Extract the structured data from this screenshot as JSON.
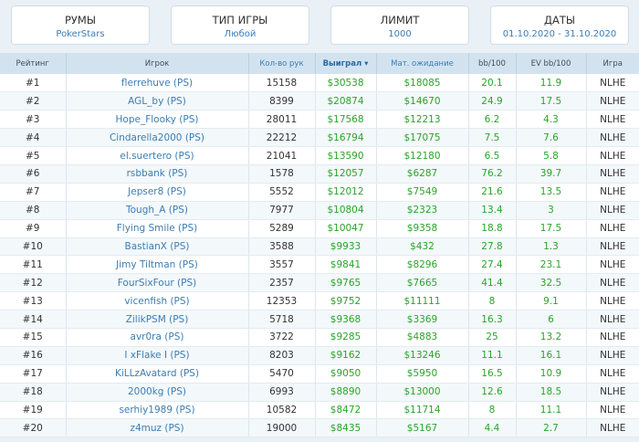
{
  "filters": [
    {
      "title": "РУМЫ",
      "value": "PokerStars"
    },
    {
      "title": "ТИП ИГРЫ",
      "value": "Любой"
    },
    {
      "title": "ЛИМИТ",
      "value": "1000"
    },
    {
      "title": "ДАТЫ",
      "value": "01.10.2020 - 31.10.2020"
    }
  ],
  "table": {
    "headers": {
      "rank": "Рейтинг",
      "player": "Игрок",
      "hands": "Кол-во рук",
      "won": "Выиграл",
      "sort_icon": "▾",
      "ev": "Мат. ожидание",
      "bb100": "bb/100",
      "ev_bb100": "EV bb/100",
      "game": "Игра"
    },
    "rows": [
      {
        "rank": "#1",
        "player": "flerrehuve (PS)",
        "hands": "15158",
        "won": "$30538",
        "ev": "$18085",
        "bb100": "20.1",
        "ev_bb100": "11.9",
        "game": "NLHE"
      },
      {
        "rank": "#2",
        "player": "AGL_by (PS)",
        "hands": "8399",
        "won": "$20874",
        "ev": "$14670",
        "bb100": "24.9",
        "ev_bb100": "17.5",
        "game": "NLHE"
      },
      {
        "rank": "#3",
        "player": "Hope_Flooky (PS)",
        "hands": "28011",
        "won": "$17568",
        "ev": "$12213",
        "bb100": "6.2",
        "ev_bb100": "4.3",
        "game": "NLHE"
      },
      {
        "rank": "#4",
        "player": "Cindarella2000 (PS)",
        "hands": "22212",
        "won": "$16794",
        "ev": "$17075",
        "bb100": "7.5",
        "ev_bb100": "7.6",
        "game": "NLHE"
      },
      {
        "rank": "#5",
        "player": "el.suertero (PS)",
        "hands": "21041",
        "won": "$13590",
        "ev": "$12180",
        "bb100": "6.5",
        "ev_bb100": "5.8",
        "game": "NLHE"
      },
      {
        "rank": "#6",
        "player": "rsbbank (PS)",
        "hands": "1578",
        "won": "$12057",
        "ev": "$6287",
        "bb100": "76.2",
        "ev_bb100": "39.7",
        "game": "NLHE"
      },
      {
        "rank": "#7",
        "player": "Jepser8 (PS)",
        "hands": "5552",
        "won": "$12012",
        "ev": "$7549",
        "bb100": "21.6",
        "ev_bb100": "13.5",
        "game": "NLHE"
      },
      {
        "rank": "#8",
        "player": "Tough_A (PS)",
        "hands": "7977",
        "won": "$10804",
        "ev": "$2323",
        "bb100": "13.4",
        "ev_bb100": "3",
        "game": "NLHE"
      },
      {
        "rank": "#9",
        "player": "Flying Smile (PS)",
        "hands": "5289",
        "won": "$10047",
        "ev": "$9358",
        "bb100": "18.8",
        "ev_bb100": "17.5",
        "game": "NLHE"
      },
      {
        "rank": "#10",
        "player": "BastianX (PS)",
        "hands": "3588",
        "won": "$9933",
        "ev": "$432",
        "bb100": "27.8",
        "ev_bb100": "1.3",
        "game": "NLHE"
      },
      {
        "rank": "#11",
        "player": "Jimy Tiltman (PS)",
        "hands": "3557",
        "won": "$9841",
        "ev": "$8296",
        "bb100": "27.4",
        "ev_bb100": "23.1",
        "game": "NLHE"
      },
      {
        "rank": "#12",
        "player": "FourSixFour (PS)",
        "hands": "2357",
        "won": "$9765",
        "ev": "$7665",
        "bb100": "41.4",
        "ev_bb100": "32.5",
        "game": "NLHE"
      },
      {
        "rank": "#13",
        "player": "vicenfish (PS)",
        "hands": "12353",
        "won": "$9752",
        "ev": "$11111",
        "bb100": "8",
        "ev_bb100": "9.1",
        "game": "NLHE"
      },
      {
        "rank": "#14",
        "player": "ZilikPSM (PS)",
        "hands": "5718",
        "won": "$9368",
        "ev": "$3369",
        "bb100": "16.3",
        "ev_bb100": "6",
        "game": "NLHE"
      },
      {
        "rank": "#15",
        "player": "avr0ra (PS)",
        "hands": "3722",
        "won": "$9285",
        "ev": "$4883",
        "bb100": "25",
        "ev_bb100": "13.2",
        "game": "NLHE"
      },
      {
        "rank": "#16",
        "player": "I xFlake I (PS)",
        "hands": "8203",
        "won": "$9162",
        "ev": "$13246",
        "bb100": "11.1",
        "ev_bb100": "16.1",
        "game": "NLHE"
      },
      {
        "rank": "#17",
        "player": "KiLLzAvatard (PS)",
        "hands": "5470",
        "won": "$9050",
        "ev": "$5950",
        "bb100": "16.5",
        "ev_bb100": "10.9",
        "game": "NLHE"
      },
      {
        "rank": "#18",
        "player": "2000kg (PS)",
        "hands": "6993",
        "won": "$8890",
        "ev": "$13000",
        "bb100": "12.6",
        "ev_bb100": "18.5",
        "game": "NLHE"
      },
      {
        "rank": "#19",
        "player": "serhiy1989 (PS)",
        "hands": "10582",
        "won": "$8472",
        "ev": "$11714",
        "bb100": "8",
        "ev_bb100": "11.1",
        "game": "NLHE"
      },
      {
        "rank": "#20",
        "player": "z4muz (PS)",
        "hands": "19000",
        "won": "$8435",
        "ev": "$5167",
        "bb100": "4.4",
        "ev_bb100": "2.7",
        "game": "NLHE"
      }
    ]
  }
}
